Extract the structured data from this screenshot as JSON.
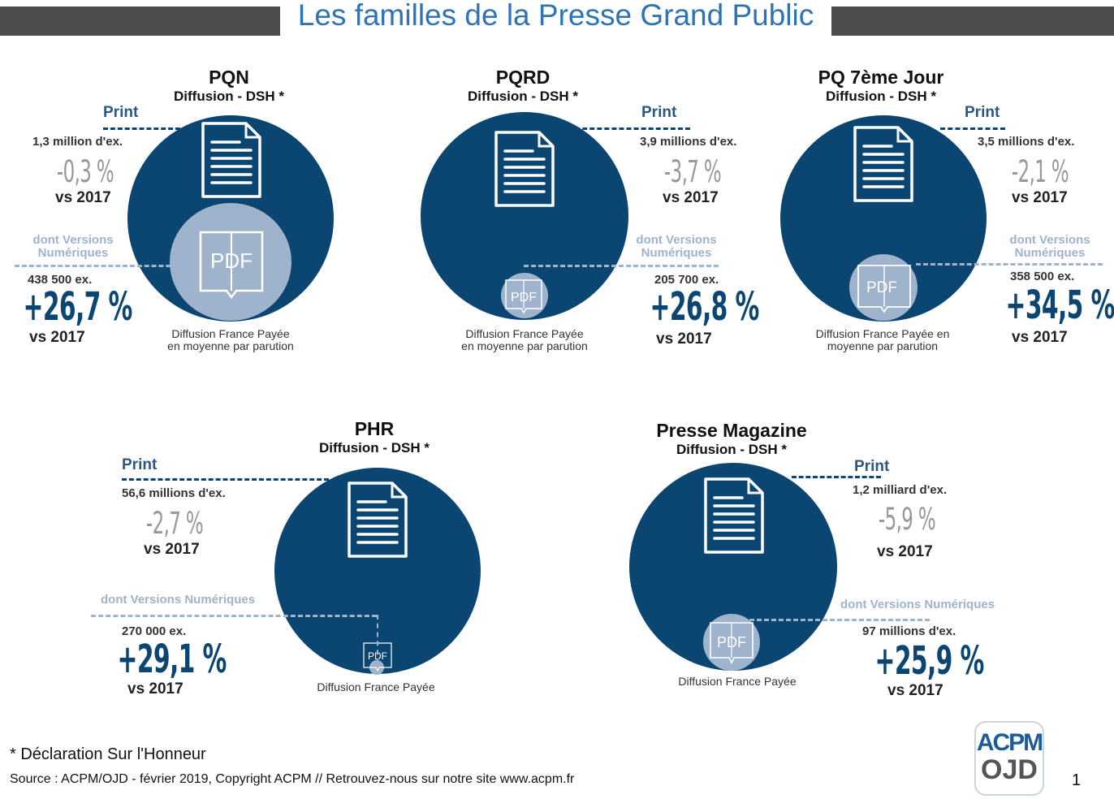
{
  "page": {
    "title": "Les familles de la Presse Grand Public",
    "footnote": "* Déclaration Sur l'Honneur",
    "source": "Source : ACPM/OJD - février 2019, Copyright ACPM // Retrouvez-nous sur notre site www.acpm.fr",
    "page_number": "1"
  },
  "logo": {
    "line1": "ACPM",
    "line2": "OJD"
  },
  "pdf_label": "PDF",
  "pqn": {
    "title": "PQN",
    "subtitle": "Diffusion - DSH *",
    "print_label": "Print",
    "print_count": "1,3 million d'ex.",
    "print_change": "-0,3 %",
    "print_vs": "vs 2017",
    "digital_label_1": "dont Versions",
    "digital_label_2": "Numériques",
    "digital_count": "438 500 ex.",
    "digital_change": "+26,7 %",
    "digital_vs": "vs 2017",
    "caption_1": "Diffusion France Payée",
    "caption_2": "en moyenne par parution"
  },
  "pqrd": {
    "title": "PQRD",
    "subtitle": "Diffusion - DSH *",
    "print_label": "Print",
    "print_count": "3,9 millions d'ex.",
    "print_change": "-3,7 %",
    "print_vs": "vs 2017",
    "digital_label_1": "dont Versions",
    "digital_label_2": "Numériques",
    "digital_count": "205 700 ex.",
    "digital_change": "+26,8 %",
    "digital_vs": "vs 2017",
    "caption_1": "Diffusion France Payée",
    "caption_2": "en moyenne par parution"
  },
  "pq7": {
    "title": "PQ 7ème Jour",
    "subtitle": "Diffusion - DSH *",
    "print_label": "Print",
    "print_count": "3,5 millions d'ex.",
    "print_change": "-2,1 %",
    "print_vs": "vs 2017",
    "digital_label_1": "dont Versions",
    "digital_label_2": "Numériques",
    "digital_count": "358 500 ex.",
    "digital_change": "+34,5 %",
    "digital_vs": "vs 2017",
    "caption_1": "Diffusion France Payée en",
    "caption_2": "moyenne par parution"
  },
  "phr": {
    "title": "PHR",
    "subtitle": "Diffusion - DSH *",
    "print_label": "Print",
    "print_count": "56,6 millions d'ex.",
    "print_change": "-2,7 %",
    "print_vs": "vs 2017",
    "digital_label": "dont Versions Numériques",
    "digital_count": "270 000 ex.",
    "digital_change": "+29,1 %",
    "digital_vs": "vs 2017",
    "caption": "Diffusion France Payée"
  },
  "mag": {
    "title": "Presse Magazine",
    "subtitle": "Diffusion - DSH *",
    "print_label": "Print",
    "print_count": "1,2 milliard d'ex.",
    "print_change": "-5,9 %",
    "print_vs": "vs 2017",
    "digital_label": "dont Versions Numériques",
    "digital_count": "97 millions d'ex.",
    "digital_change": "+25,9 %",
    "digital_vs": "vs 2017",
    "caption": "Diffusion France Payée"
  }
}
